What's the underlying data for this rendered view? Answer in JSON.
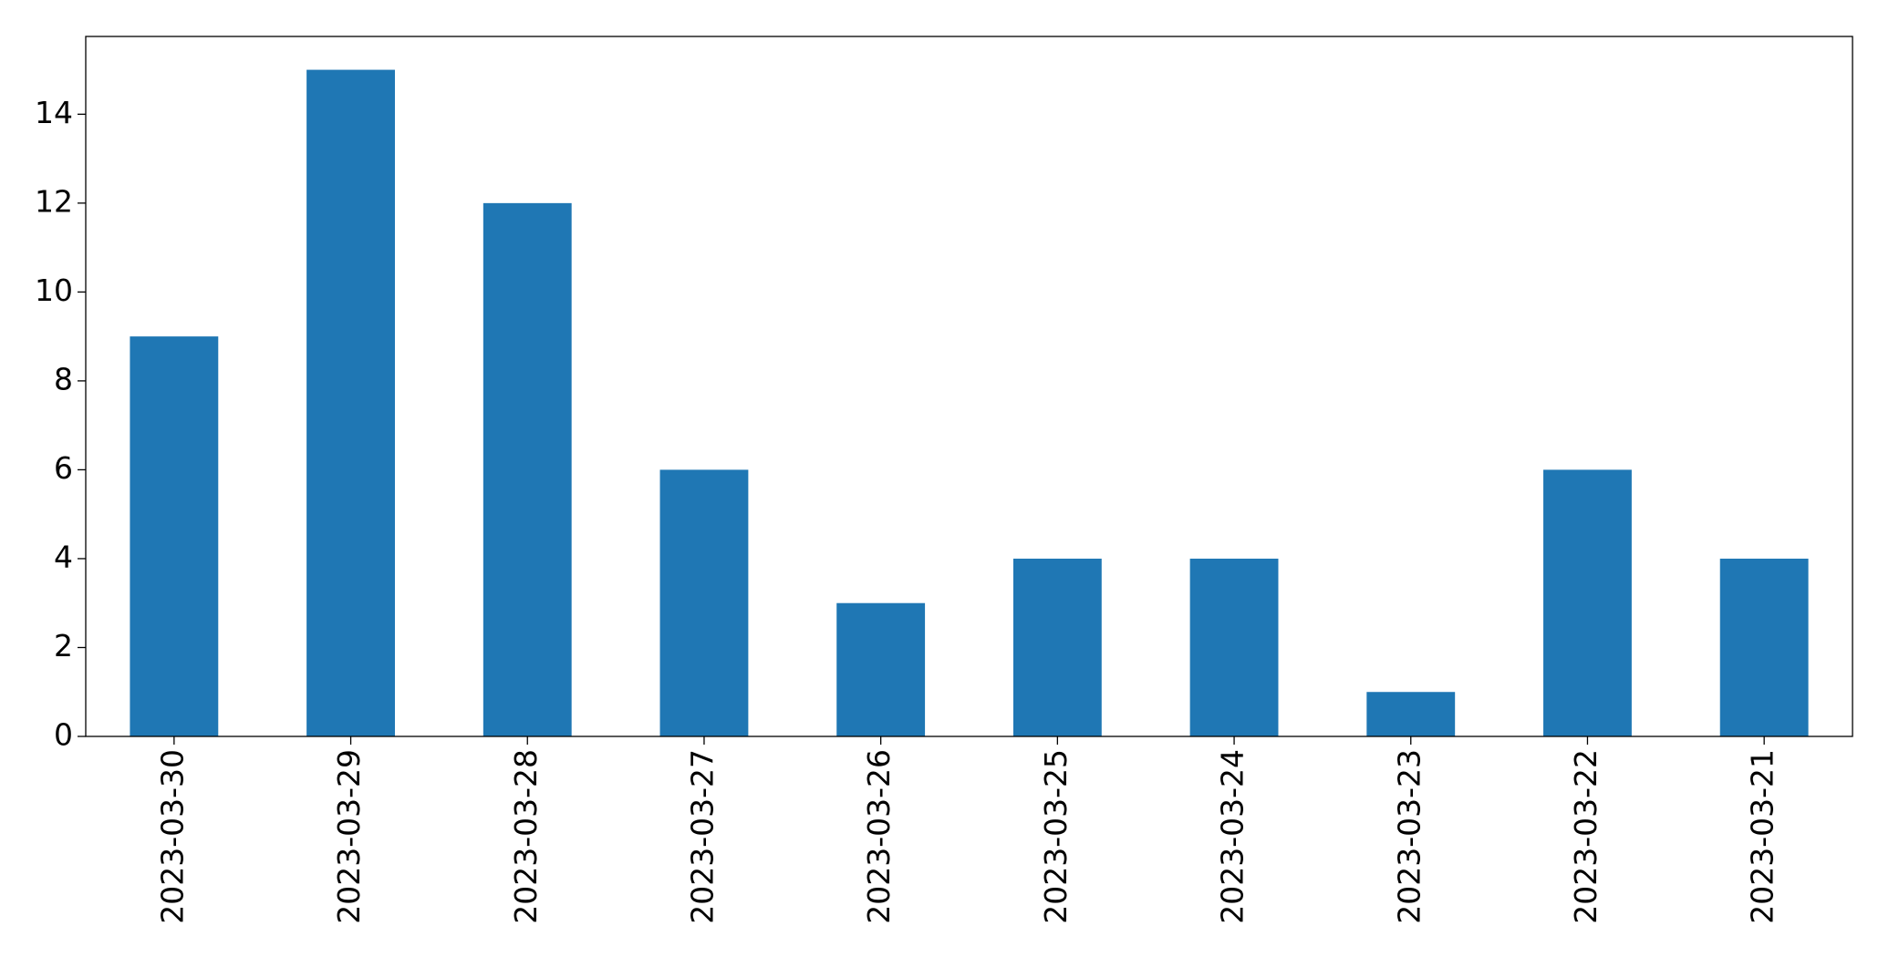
{
  "chart_data": {
    "type": "bar",
    "categories": [
      "2023-03-30",
      "2023-03-29",
      "2023-03-28",
      "2023-03-27",
      "2023-03-26",
      "2023-03-25",
      "2023-03-24",
      "2023-03-23",
      "2023-03-22",
      "2023-03-21"
    ],
    "values": [
      9,
      15,
      12,
      6,
      3,
      4,
      4,
      1,
      6,
      4
    ],
    "color": "#1f77b4",
    "ylim": [
      0,
      15.75
    ],
    "yticks": [
      0,
      2,
      4,
      6,
      8,
      10,
      12,
      14
    ],
    "grid": false
  }
}
